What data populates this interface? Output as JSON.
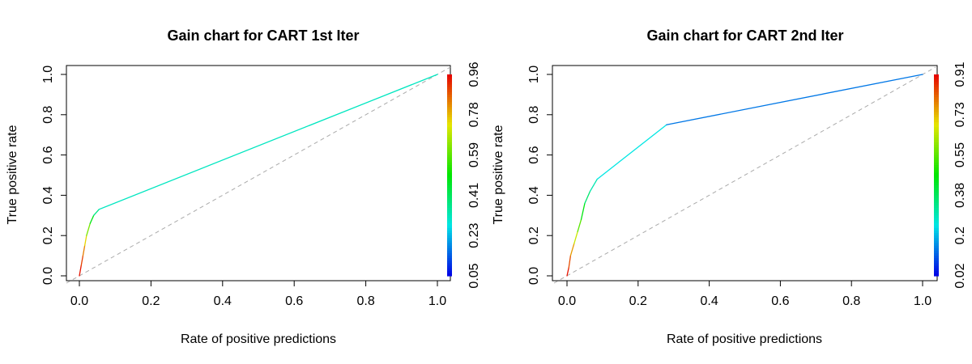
{
  "chart_data": [
    {
      "type": "line",
      "title": "Gain chart for CART 1st Iter",
      "xlabel": "Rate of positive predictions",
      "ylabel": "True positive rate",
      "xlim": [
        0,
        1
      ],
      "ylim": [
        0,
        1
      ],
      "x_ticks": [
        "0.0",
        "0.2",
        "0.4",
        "0.6",
        "0.8",
        "1.0"
      ],
      "y_ticks": [
        "0.0",
        "0.2",
        "0.4",
        "0.6",
        "0.8",
        "1.0"
      ],
      "colorbar_ticks": [
        "0.05",
        "0.23",
        "0.41",
        "0.59",
        "0.78",
        "0.96"
      ],
      "colorbar_range": [
        0.05,
        0.96
      ],
      "grid": false,
      "reference_line": {
        "x": [
          0,
          1
        ],
        "y": [
          0,
          1
        ],
        "style": "dashed",
        "color": "#aaaaaa"
      },
      "series": [
        {
          "points": [
            {
              "x": 0.0,
              "y": 0.0,
              "c": 0.96
            },
            {
              "x": 0.005,
              "y": 0.05,
              "c": 0.92
            },
            {
              "x": 0.01,
              "y": 0.1,
              "c": 0.87
            },
            {
              "x": 0.015,
              "y": 0.15,
              "c": 0.8
            },
            {
              "x": 0.02,
              "y": 0.2,
              "c": 0.7
            },
            {
              "x": 0.03,
              "y": 0.26,
              "c": 0.55
            },
            {
              "x": 0.04,
              "y": 0.3,
              "c": 0.42
            },
            {
              "x": 0.055,
              "y": 0.33,
              "c": 0.33
            },
            {
              "x": 1.0,
              "y": 1.0,
              "c": 0.3
            }
          ]
        }
      ]
    },
    {
      "type": "line",
      "title": "Gain chart for CART 2nd Iter",
      "xlabel": "Rate of positive predictions",
      "ylabel": "True positive rate",
      "xlim": [
        0,
        1
      ],
      "ylim": [
        0,
        1
      ],
      "x_ticks": [
        "0.0",
        "0.2",
        "0.4",
        "0.6",
        "0.8",
        "1.0"
      ],
      "y_ticks": [
        "0.0",
        "0.2",
        "0.4",
        "0.6",
        "0.8",
        "1.0"
      ],
      "colorbar_ticks": [
        "0.02",
        "0.2",
        "0.38",
        "0.55",
        "0.73",
        "0.91"
      ],
      "colorbar_range": [
        0.02,
        0.91
      ],
      "grid": false,
      "reference_line": {
        "x": [
          0,
          1
        ],
        "y": [
          0,
          1
        ],
        "style": "dashed",
        "color": "#aaaaaa"
      },
      "series": [
        {
          "points": [
            {
              "x": 0.0,
              "y": 0.0,
              "c": 0.91
            },
            {
              "x": 0.005,
              "y": 0.04,
              "c": 0.87
            },
            {
              "x": 0.01,
              "y": 0.1,
              "c": 0.8
            },
            {
              "x": 0.02,
              "y": 0.16,
              "c": 0.72
            },
            {
              "x": 0.03,
              "y": 0.22,
              "c": 0.6
            },
            {
              "x": 0.04,
              "y": 0.28,
              "c": 0.5
            },
            {
              "x": 0.05,
              "y": 0.36,
              "c": 0.4
            },
            {
              "x": 0.065,
              "y": 0.42,
              "c": 0.32
            },
            {
              "x": 0.085,
              "y": 0.48,
              "c": 0.27
            },
            {
              "x": 0.28,
              "y": 0.75,
              "c": 0.22
            },
            {
              "x": 1.0,
              "y": 1.0,
              "c": 0.05
            }
          ]
        }
      ]
    }
  ]
}
